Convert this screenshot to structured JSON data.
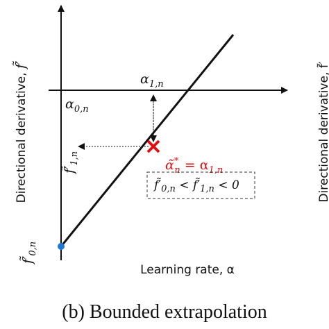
{
  "y_axis_label": {
    "text": "Directional derivative, ",
    "symbol": "f̃′"
  },
  "x_axis_label": "Learning rate, α",
  "alpha_1n": {
    "base": "α",
    "sub": "1,n"
  },
  "alpha_0n": {
    "base": "α",
    "sub": "0,n"
  },
  "f_1n": {
    "base": "f̃′",
    "sub": "1,n"
  },
  "f_0n": {
    "base": "f̃′",
    "sub": "0,n"
  },
  "step_label": {
    "base": "α̃",
    "sup": "*",
    "sub": "n",
    "eq": " = α",
    "sub2": "1,n"
  },
  "condition": {
    "a": "f̃′",
    "a_sub": "0,n",
    "lt1": " < f̃′",
    "b_sub": "1,n",
    "lt2": " < 0"
  },
  "caption": "(b) Bounded extrapolation",
  "side_label": "Directional derivative, f̃′"
}
